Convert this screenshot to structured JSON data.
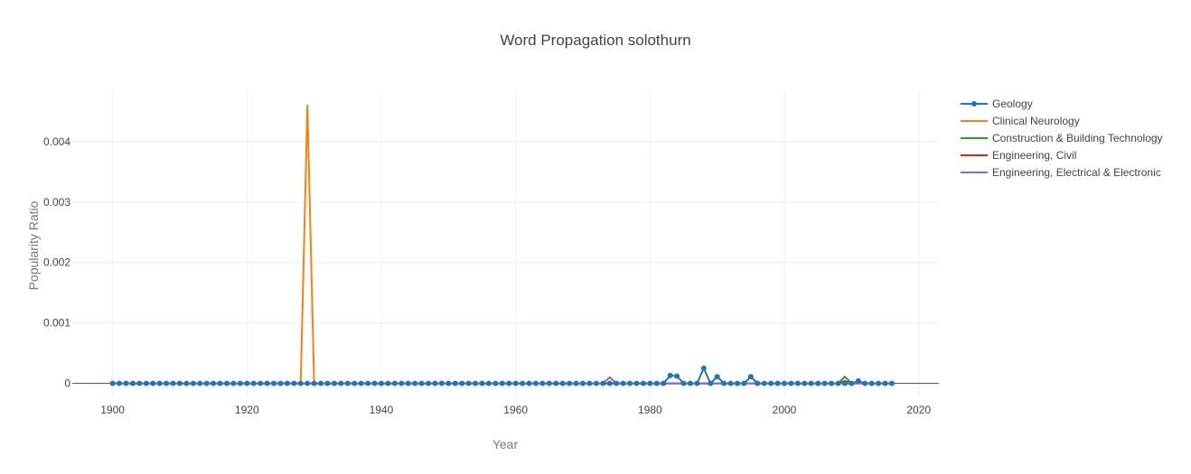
{
  "chart_data": {
    "type": "line",
    "title": "Word Propagation solothurn",
    "xlabel": "Year",
    "ylabel": "Popularity Ratio",
    "xlim": [
      1894,
      2023
    ],
    "ylim": [
      -0.00023,
      0.00485
    ],
    "xticks": [
      1900,
      1920,
      1940,
      1960,
      1980,
      2000,
      2020
    ],
    "yticks": [
      0,
      0.001,
      0.002,
      0.003,
      0.004
    ],
    "ytick_labels": [
      "0",
      "0.001",
      "0.002",
      "0.003",
      "0.004"
    ],
    "grid": true,
    "legend_position": "top-right",
    "series": [
      {
        "name": "Geology",
        "color": "#1f77b4",
        "markers": true,
        "start_year": 1900,
        "end_year": 2016,
        "points": [
          [
            1983,
            0.00013
          ],
          [
            1984,
            0.00012
          ],
          [
            1988,
            0.00025
          ],
          [
            1990,
            0.00011
          ],
          [
            1995,
            0.00011
          ],
          [
            2011,
            4e-05
          ]
        ]
      },
      {
        "name": "Clinical Neurology",
        "color": "#ff7f0e",
        "markers": false,
        "start_year": 1900,
        "end_year": 2016,
        "points": [
          [
            1929,
            0.0046
          ]
        ]
      },
      {
        "name": "Construction & Building Technology",
        "color": "#2ca02c",
        "markers": false,
        "start_year": 1900,
        "end_year": 2016,
        "points": [
          [
            2009,
            0.00011
          ]
        ]
      },
      {
        "name": "Engineering, Civil",
        "color": "#d62728",
        "markers": false,
        "start_year": 1900,
        "end_year": 2016,
        "points": [
          [
            2009,
            4e-05
          ]
        ]
      },
      {
        "name": "Engineering, Electrical & Electronic",
        "color": "#9467bd",
        "markers": false,
        "start_year": 1900,
        "end_year": 2016,
        "points": [
          [
            1974,
            0.0001
          ]
        ]
      }
    ]
  }
}
